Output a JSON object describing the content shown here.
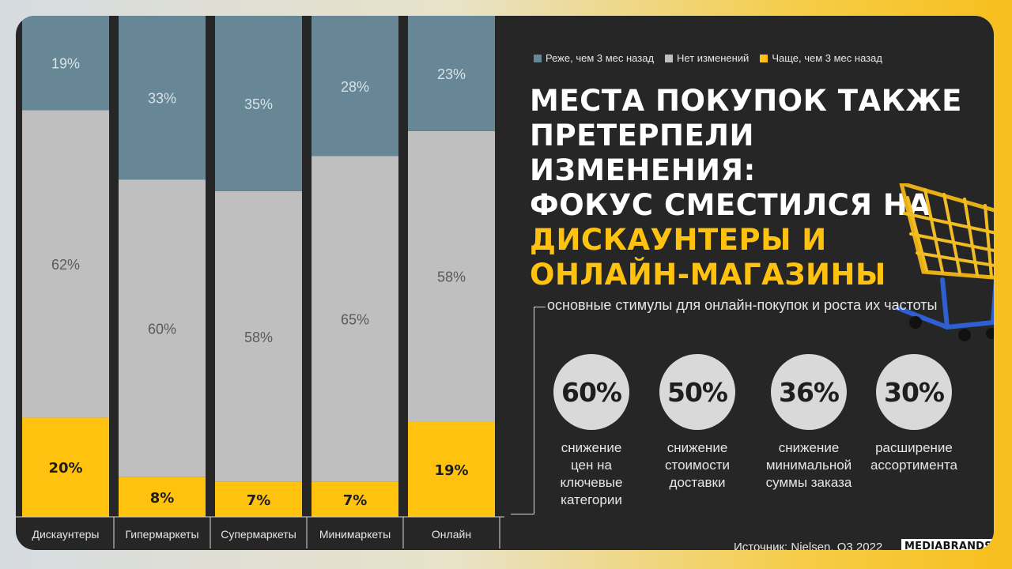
{
  "legend": [
    {
      "label": "Реже, чем 3 мес назад",
      "color": "#678796"
    },
    {
      "label": "Нет изменений",
      "color": "#bfbfbf"
    },
    {
      "label": "Чаще, чем 3 мес назад",
      "color": "#ffc20e"
    }
  ],
  "headline": {
    "line1": "МЕСТА ПОКУПОК ТАКЖЕ",
    "line2": "ПРЕТЕРПЕЛИ ИЗМЕНЕНИЯ:",
    "line3": "ФОКУС СМЕСТИЛСЯ НА",
    "line4": "ДИСКАУНТЕРЫ И",
    "line5": "ОНЛАЙН-МАГАЗИНЫ"
  },
  "subtitle": "основные  стимулы для онлайн-покупок  и роста их частоты",
  "stats": [
    {
      "value": "60%",
      "desc": [
        "снижение",
        "цен на",
        "ключевые",
        "категории"
      ]
    },
    {
      "value": "50%",
      "desc": [
        "снижение",
        "стоимости",
        "доставки"
      ]
    },
    {
      "value": "36%",
      "desc": [
        "снижение",
        "минимальной",
        "суммы заказа"
      ]
    },
    {
      "value": "30%",
      "desc": [
        "расширение",
        "ассортимента"
      ]
    }
  ],
  "source": "Источник: Nielsen, Q3 2022",
  "brand": "MEDIABRANDS",
  "colors": {
    "less": "#678796",
    "same": "#bfbfbf",
    "more": "#ffc20e",
    "background": "#262626"
  },
  "chart_data": {
    "type": "bar",
    "stacked": true,
    "normalized": true,
    "categories": [
      "Дискаунтеры",
      "Гипермаркеты",
      "Супермаркеты",
      "Минимаркеты",
      "Онлайн"
    ],
    "series": [
      {
        "name": "Чаще, чем 3 мес назад",
        "values": [
          20,
          8,
          7,
          7,
          19
        ],
        "labels": [
          "20%",
          "8%",
          "7%",
          "7%",
          "19%"
        ]
      },
      {
        "name": "Нет изменений",
        "values": [
          62,
          60,
          58,
          65,
          58
        ],
        "labels": [
          "62%",
          "60%",
          "58%",
          "65%",
          "58%"
        ]
      },
      {
        "name": "Реже, чем 3 мес назад",
        "values": [
          19,
          33,
          35,
          28,
          23
        ],
        "labels": [
          "19%",
          "33%",
          "35%",
          "28%",
          "23%"
        ]
      }
    ],
    "legend_position": "top-right",
    "grid": false
  }
}
